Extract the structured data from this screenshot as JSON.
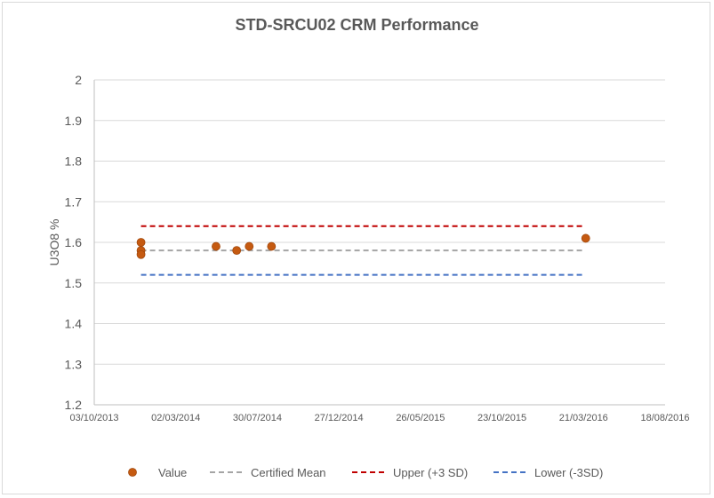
{
  "chart_data": {
    "type": "scatter",
    "title": "STD-SRCU02 CRM Performance",
    "xlabel": "",
    "ylabel": "U3O8 %",
    "ylim": [
      1.2,
      2
    ],
    "yticks": [
      "1.2",
      "1.3",
      "1.4",
      "1.5",
      "1.6",
      "1.7",
      "1.8",
      "1.9",
      "2"
    ],
    "xlim": [
      "2013-10-03",
      "2016-08-18"
    ],
    "xticks": [
      "03/10/2013",
      "02/03/2014",
      "30/07/2014",
      "27/12/2014",
      "26/05/2015",
      "23/10/2015",
      "21/03/2016",
      "18/08/2016"
    ],
    "grid": true,
    "legend_position": "bottom",
    "series": [
      {
        "name": "Value",
        "kind": "scatter",
        "color": "#c55a11",
        "points": [
          {
            "x": "2013-12-28",
            "y": 1.6
          },
          {
            "x": "2013-12-28",
            "y": 1.58
          },
          {
            "x": "2013-12-28",
            "y": 1.57
          },
          {
            "x": "2014-05-15",
            "y": 1.59
          },
          {
            "x": "2014-06-22",
            "y": 1.58
          },
          {
            "x": "2014-07-15",
            "y": 1.59
          },
          {
            "x": "2014-08-25",
            "y": 1.59
          },
          {
            "x": "2016-03-25",
            "y": 1.61
          }
        ]
      },
      {
        "name": "Certified Mean",
        "kind": "dashed-line",
        "color": "#a5a5a5",
        "points": [
          {
            "x": "2013-12-28",
            "y": 1.58
          },
          {
            "x": "2016-03-20",
            "y": 1.58
          }
        ]
      },
      {
        "name": "Upper (+3 SD)",
        "kind": "dashed-line",
        "color": "#c00000",
        "points": [
          {
            "x": "2013-12-28",
            "y": 1.64
          },
          {
            "x": "2016-03-20",
            "y": 1.64
          }
        ]
      },
      {
        "name": "Lower (-3SD)",
        "kind": "dashed-line",
        "color": "#4472c4",
        "points": [
          {
            "x": "2013-12-28",
            "y": 1.52
          },
          {
            "x": "2016-03-20",
            "y": 1.52
          }
        ]
      }
    ]
  }
}
